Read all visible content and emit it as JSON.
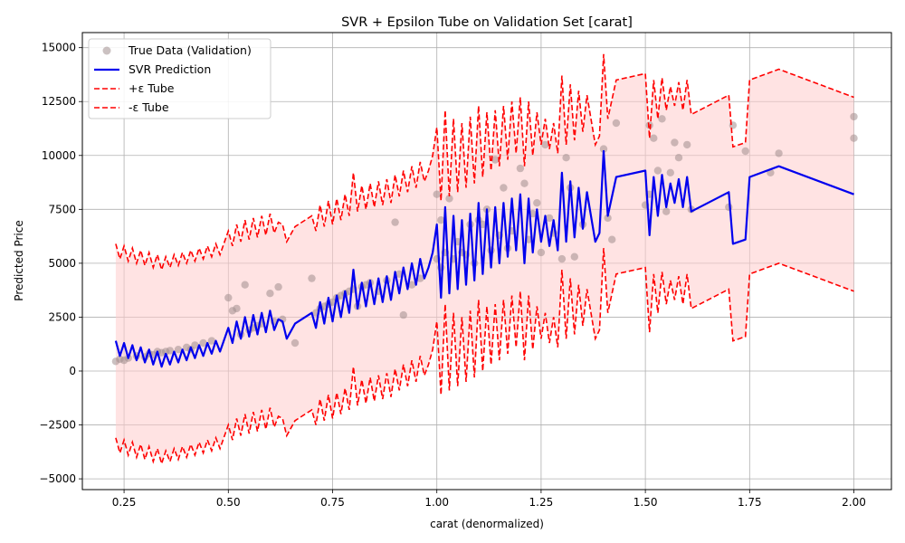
{
  "chart_data": {
    "type": "line",
    "title": "SVR + Epsilon Tube on Validation Set [carat]",
    "xlabel": "carat (denormalized)",
    "ylabel": "Predicted Price",
    "xlim": [
      0.15,
      2.09
    ],
    "ylim": [
      -5500,
      15700
    ],
    "x_ticks": [
      0.25,
      0.5,
      0.75,
      1.0,
      1.25,
      1.5,
      1.75,
      2.0
    ],
    "x_tick_labels": [
      "0.25",
      "0.50",
      "0.75",
      "1.00",
      "1.25",
      "1.50",
      "1.75",
      "2.00"
    ],
    "y_ticks": [
      -5000,
      -2500,
      0,
      2500,
      5000,
      7500,
      10000,
      12500,
      15000
    ],
    "y_tick_labels": [
      "−5000",
      "−2500",
      "0",
      "2500",
      "5000",
      "7500",
      "10000",
      "12500",
      "15000"
    ],
    "grid": true,
    "legend_position": "top-left",
    "epsilon": 4500,
    "colors": {
      "scatter": "#a08e8e",
      "prediction": "#0000ee",
      "tube": "#ff0000",
      "fill": "#ffcccc"
    },
    "legend": [
      "True Data (Validation)",
      "SVR Prediction",
      "+ε Tube",
      "-ε Tube"
    ],
    "series": [
      {
        "name": "SVR Prediction",
        "x": [
          0.23,
          0.24,
          0.25,
          0.26,
          0.27,
          0.28,
          0.29,
          0.3,
          0.31,
          0.32,
          0.33,
          0.34,
          0.35,
          0.36,
          0.37,
          0.38,
          0.39,
          0.4,
          0.41,
          0.42,
          0.43,
          0.44,
          0.45,
          0.46,
          0.47,
          0.48,
          0.5,
          0.51,
          0.52,
          0.53,
          0.54,
          0.55,
          0.56,
          0.57,
          0.58,
          0.59,
          0.6,
          0.61,
          0.62,
          0.63,
          0.64,
          0.66,
          0.7,
          0.71,
          0.72,
          0.73,
          0.74,
          0.75,
          0.76,
          0.77,
          0.78,
          0.79,
          0.8,
          0.81,
          0.82,
          0.83,
          0.84,
          0.85,
          0.86,
          0.87,
          0.88,
          0.89,
          0.9,
          0.91,
          0.92,
          0.93,
          0.94,
          0.95,
          0.96,
          0.97,
          0.98,
          0.99,
          1.0,
          1.01,
          1.02,
          1.03,
          1.04,
          1.05,
          1.06,
          1.07,
          1.08,
          1.09,
          1.1,
          1.11,
          1.12,
          1.13,
          1.14,
          1.15,
          1.16,
          1.17,
          1.18,
          1.19,
          1.2,
          1.21,
          1.22,
          1.23,
          1.24,
          1.25,
          1.26,
          1.27,
          1.28,
          1.29,
          1.3,
          1.31,
          1.32,
          1.33,
          1.34,
          1.35,
          1.36,
          1.38,
          1.39,
          1.4,
          1.41,
          1.43,
          1.5,
          1.51,
          1.52,
          1.53,
          1.54,
          1.55,
          1.56,
          1.57,
          1.58,
          1.59,
          1.6,
          1.61,
          1.7,
          1.71,
          1.74,
          1.75,
          1.82,
          2.0
        ],
        "y": [
          1400,
          700,
          1300,
          600,
          1200,
          500,
          1100,
          400,
          1000,
          300,
          900,
          200,
          800,
          300,
          900,
          400,
          1000,
          500,
          1100,
          600,
          1200,
          700,
          1300,
          800,
          1400,
          900,
          2000,
          1300,
          2300,
          1500,
          2500,
          1600,
          2600,
          1700,
          2700,
          1800,
          2800,
          1900,
          2400,
          2300,
          1500,
          2200,
          2700,
          2000,
          3200,
          2200,
          3400,
          2300,
          3500,
          2500,
          3700,
          2700,
          4700,
          2900,
          4100,
          3000,
          4200,
          3100,
          4300,
          3200,
          4400,
          3300,
          4600,
          3600,
          4800,
          3800,
          5000,
          4000,
          5200,
          4300,
          4800,
          5500,
          6800,
          3400,
          7600,
          3600,
          7200,
          3800,
          7000,
          4000,
          7300,
          4200,
          7800,
          4500,
          7500,
          4800,
          7600,
          5000,
          7800,
          5300,
          8000,
          5600,
          8200,
          5000,
          8000,
          5500,
          7500,
          6000,
          7200,
          5800,
          7000,
          5600,
          9200,
          6000,
          8800,
          6200,
          8500,
          6600,
          8300,
          6000,
          6400,
          10200,
          7200,
          9000,
          9300,
          6300,
          9000,
          7200,
          9100,
          7600,
          8700,
          7800,
          8900,
          7600,
          9000,
          7400,
          8300,
          5900,
          6100,
          9000,
          9500,
          8200
        ]
      },
      {
        "name": "True Data (Validation)",
        "x": [
          0.23,
          0.24,
          0.25,
          0.26,
          0.28,
          0.3,
          0.31,
          0.32,
          0.33,
          0.34,
          0.35,
          0.36,
          0.38,
          0.4,
          0.41,
          0.42,
          0.44,
          0.46,
          0.5,
          0.51,
          0.52,
          0.53,
          0.54,
          0.55,
          0.56,
          0.57,
          0.58,
          0.6,
          0.61,
          0.62,
          0.63,
          0.66,
          0.7,
          0.71,
          0.72,
          0.73,
          0.74,
          0.75,
          0.76,
          0.77,
          0.78,
          0.79,
          0.8,
          0.81,
          0.82,
          0.83,
          0.84,
          0.86,
          0.88,
          0.9,
          0.91,
          0.92,
          0.94,
          0.96,
          1.0,
          1.0,
          1.01,
          1.01,
          1.02,
          1.03,
          1.04,
          1.05,
          1.06,
          1.07,
          1.08,
          1.09,
          1.1,
          1.11,
          1.12,
          1.13,
          1.14,
          1.15,
          1.16,
          1.17,
          1.18,
          1.2,
          1.21,
          1.22,
          1.23,
          1.24,
          1.25,
          1.26,
          1.27,
          1.28,
          1.3,
          1.31,
          1.32,
          1.33,
          1.35,
          1.4,
          1.41,
          1.42,
          1.43,
          1.5,
          1.51,
          1.51,
          1.52,
          1.53,
          1.54,
          1.55,
          1.56,
          1.57,
          1.58,
          1.6,
          1.61,
          1.7,
          1.71,
          1.74,
          1.8,
          1.82,
          2.0,
          2.0
        ],
        "y": [
          450,
          550,
          500,
          600,
          700,
          650,
          800,
          750,
          900,
          850,
          900,
          950,
          1000,
          1100,
          1000,
          1200,
          1300,
          1400,
          3400,
          2800,
          2900,
          1700,
          4000,
          1900,
          2000,
          2100,
          2200,
          3600,
          2300,
          3900,
          2400,
          1300,
          4300,
          2700,
          2900,
          3000,
          3100,
          3200,
          3400,
          3500,
          3600,
          3700,
          3800,
          3000,
          3900,
          4000,
          4100,
          3700,
          4200,
          6900,
          4500,
          2600,
          4000,
          4300,
          8200,
          5200,
          7000,
          4800,
          5500,
          8000,
          5200,
          6000,
          5500,
          5400,
          6800,
          5000,
          7000,
          6800,
          7500,
          5600,
          9800,
          6300,
          8500,
          5700,
          6500,
          9400,
          8700,
          6100,
          7300,
          7800,
          5500,
          10500,
          7100,
          6400,
          5200,
          9900,
          8500,
          5300,
          6800,
          10300,
          7100,
          6100,
          11500,
          7700,
          11400,
          8200,
          10800,
          9300,
          11700,
          7400,
          9200,
          10600,
          9900,
          10500,
          7500,
          7600,
          11400,
          10200,
          9200,
          10100,
          11800,
          10800
        ]
      }
    ]
  }
}
